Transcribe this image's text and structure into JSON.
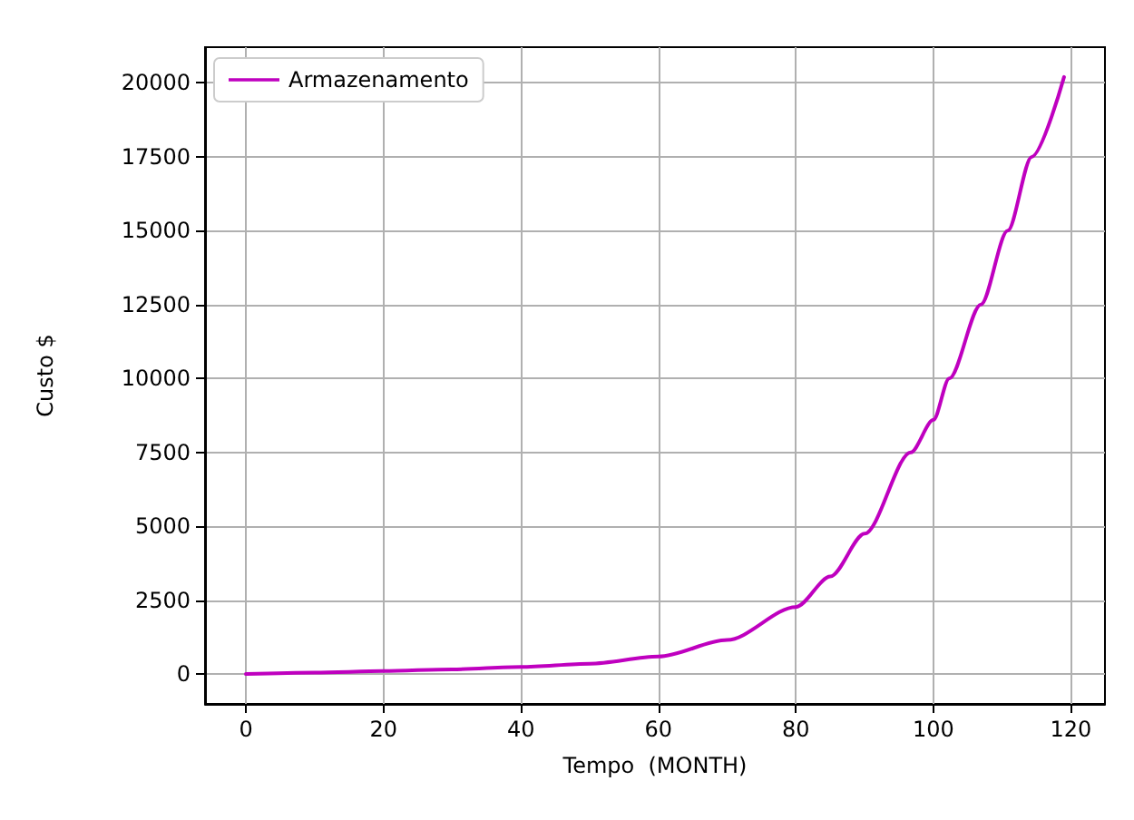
{
  "chart_data": {
    "type": "line",
    "xlabel": "Tempo  (MONTH)",
    "ylabel": "Custo $",
    "x": [
      0,
      10,
      20,
      30,
      40,
      50,
      60,
      70,
      80,
      85,
      90,
      96.7,
      100,
      102.3,
      106.9,
      110.8,
      114.3,
      119
    ],
    "series": [
      {
        "name": "Armazenamento",
        "color": "#bf00bf",
        "values": [
          0,
          50,
          100,
          160,
          240,
          350,
          590,
          1150,
          2270,
          3300,
          4750,
          7500,
          8600,
          10000,
          12500,
          15000,
          17500,
          20200
        ]
      }
    ],
    "xlim": [
      -5.95,
      124.95
    ],
    "xticks": [
      0,
      20,
      40,
      60,
      80,
      100,
      120
    ],
    "ylim": [
      -1010,
      21210
    ],
    "yticks": [
      0,
      2500,
      5000,
      7500,
      10000,
      12500,
      15000,
      17500,
      20000
    ],
    "grid": true,
    "legend": "top left",
    "marker": "none",
    "line_style": "solid"
  }
}
